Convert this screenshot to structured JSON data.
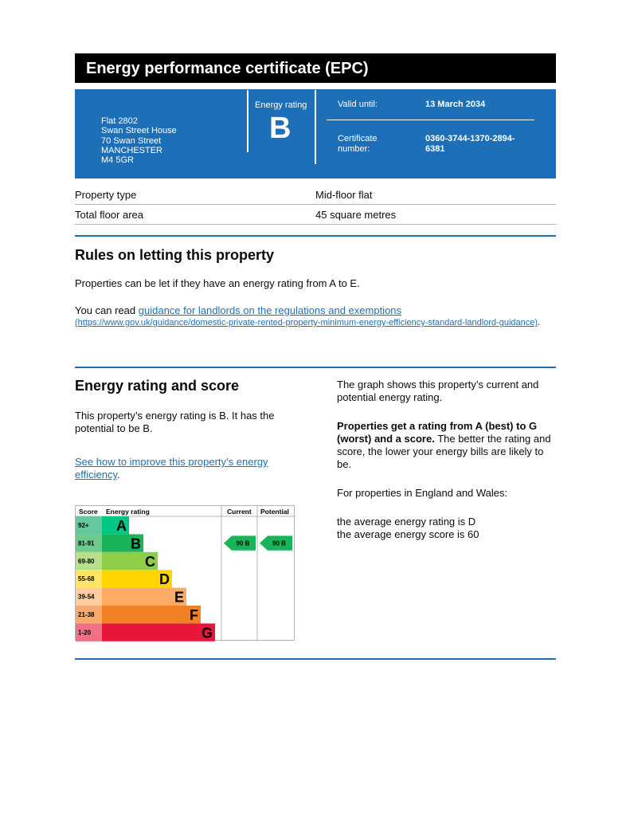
{
  "title": "Energy performance certificate (EPC)",
  "address": [
    "Flat 2802",
    "Swan Street House",
    "70 Swan Street",
    "MANCHESTER",
    "M4 5GR"
  ],
  "energy_rating_label": "Energy rating",
  "energy_rating": "B",
  "valid_until_label": "Valid until:",
  "valid_until": "13 March 2034",
  "certificate_label": [
    "Certificate",
    "number:"
  ],
  "certificate_number": [
    "0360-3744-1370-2894-",
    "6381"
  ],
  "property": [
    {
      "label": "Property type",
      "value": "Mid-floor flat"
    },
    {
      "label": "Total floor area",
      "value": "45 square metres"
    }
  ],
  "letting": {
    "heading": "Rules on letting this property",
    "para": "Properties can be let if they have an energy rating from A to E.",
    "read_prefix": "You can read ",
    "link_text": "guidance for landlords on the regulations and exemptions",
    "link_url_text": "(https://www.gov.uk/guidance/domestic-private-rented-property-minimum-energy-efficiency-standard-landlord-guidance)",
    "suffix": "."
  },
  "score": {
    "heading": "Energy rating and score",
    "para": "This property’s energy rating is B. It has the potential to be B.",
    "link_text": "See how to improve this property’s energy efficiency",
    "suffix": ".",
    "right_p1": "The graph shows this property’s current and potential energy rating.",
    "right_bold": "Properties get a rating from A (best) to G (worst) and a score.",
    "right_p2": " The better the rating and score, the lower your energy bills are likely to be.",
    "right_p3": "For properties in England and Wales:",
    "right_p4": "the average energy rating is D",
    "right_p5": "the average energy score is 60"
  },
  "chart_data": {
    "type": "bar",
    "headers": [
      "Score",
      "Energy rating",
      "Current",
      "Potential"
    ],
    "bands": [
      {
        "letter": "A",
        "range": "92+",
        "color": "#00c781",
        "score_bg": "#64c7a0"
      },
      {
        "letter": "B",
        "range": "81-91",
        "color": "#19b459",
        "score_bg": "#6fc98a"
      },
      {
        "letter": "C",
        "range": "69-80",
        "color": "#8dce46",
        "score_bg": "#b7e08a"
      },
      {
        "letter": "D",
        "range": "55-68",
        "color": "#ffd500",
        "score_bg": "#ffe466"
      },
      {
        "letter": "E",
        "range": "39-54",
        "color": "#fcaa65",
        "score_bg": "#fdcb9d"
      },
      {
        "letter": "F",
        "range": "21-38",
        "color": "#ef8023",
        "score_bg": "#f4ab6d"
      },
      {
        "letter": "G",
        "range": "1-20",
        "color": "#e9153b",
        "score_bg": "#f07088"
      }
    ],
    "current": {
      "score": 90,
      "band": "B",
      "label": "90  B"
    },
    "potential": {
      "score": 90,
      "band": "B",
      "label": "90  B"
    }
  }
}
